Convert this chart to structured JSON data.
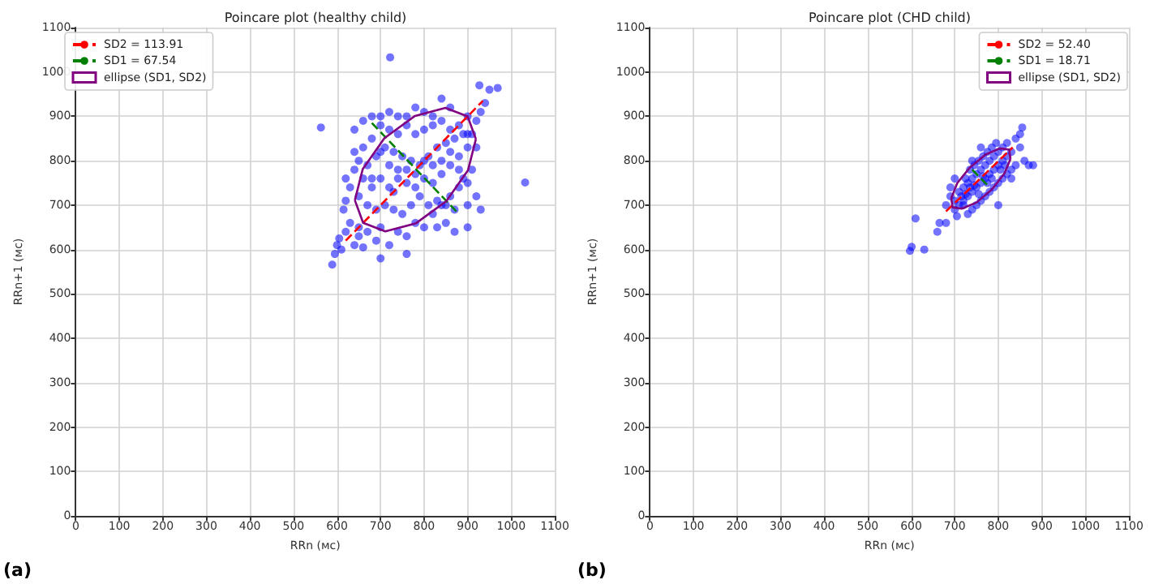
{
  "chart_data": [
    {
      "type": "scatter",
      "title": "Poincare plot (healthy child)",
      "xlabel": "RRn (мс)",
      "ylabel": "RRn+1 (мс)",
      "annotations": [
        "(a)"
      ],
      "xlim": [
        0,
        1100
      ],
      "ylim": [
        0,
        1100
      ],
      "xticks": [
        0,
        100,
        200,
        300,
        400,
        500,
        600,
        700,
        800,
        900,
        1000,
        1100
      ],
      "yticks": [
        0,
        100,
        200,
        300,
        400,
        500,
        600,
        700,
        800,
        900,
        1000,
        1100
      ],
      "grid": true,
      "legend": "top left",
      "series": [
        {
          "color": "#0000ff",
          "marker": "circle",
          "x": [
            722,
            563,
            1032,
            969,
            927,
            589,
            595,
            600,
            610,
            620,
            605,
            640,
            660,
            630,
            615,
            650,
            670,
            690,
            700,
            720,
            740,
            760,
            780,
            800,
            820,
            840,
            860,
            880,
            900,
            890,
            910,
            870,
            850,
            830,
            810,
            790,
            770,
            750,
            730,
            710,
            690,
            670,
            650,
            630,
            620,
            640,
            660,
            680,
            700,
            720,
            740,
            760,
            780,
            800,
            820,
            840,
            860,
            880,
            900,
            910,
            920,
            930,
            940,
            950,
            900,
            880,
            860,
            840,
            820,
            800,
            780,
            760,
            740,
            720,
            700,
            680,
            660,
            650,
            670,
            690,
            710,
            730,
            750,
            770,
            790,
            810,
            830,
            850,
            870,
            890,
            860,
            840,
            820,
            800,
            780,
            760,
            740,
            720,
            700,
            680,
            660,
            640,
            700,
            720,
            740,
            760,
            800,
            820,
            840,
            860,
            880,
            900,
            920,
            930,
            900,
            870,
            850,
            830,
            760,
            700,
            650,
            620,
            640,
            680,
            730,
            780,
            900,
            920
          ],
          "values": [
            1033,
            875,
            751,
            964,
            970,
            566,
            590,
            610,
            600,
            640,
            625,
            610,
            605,
            660,
            690,
            650,
            640,
            620,
            650,
            610,
            640,
            630,
            660,
            650,
            680,
            700,
            720,
            740,
            700,
            760,
            780,
            690,
            660,
            710,
            700,
            720,
            700,
            680,
            690,
            700,
            690,
            700,
            720,
            740,
            760,
            780,
            760,
            740,
            760,
            740,
            760,
            750,
            740,
            760,
            750,
            770,
            790,
            810,
            830,
            860,
            890,
            910,
            930,
            960,
            900,
            880,
            870,
            890,
            880,
            870,
            860,
            880,
            860,
            870,
            880,
            850,
            830,
            800,
            790,
            810,
            830,
            820,
            810,
            800,
            790,
            810,
            830,
            840,
            850,
            860,
            920,
            940,
            900,
            910,
            920,
            900,
            900,
            910,
            900,
            900,
            890,
            870,
            820,
            790,
            780,
            780,
            800,
            790,
            800,
            820,
            780,
            750,
            720,
            690,
            650,
            640,
            700,
            650,
            590,
            580,
            630,
            710,
            820,
            760,
            730,
            770,
            860,
            830
          ]
        },
        {
          "type": "line",
          "name": "SD2 = 113.91",
          "color": "#ff0000",
          "line_style": "dashed",
          "marker": "none",
          "x": [
            620,
            935
          ],
          "values": [
            620,
            935
          ]
        },
        {
          "type": "line",
          "name": "SD1 = 67.54",
          "color": "#008000",
          "line_style": "dashed",
          "marker": "none",
          "x": [
            680,
            875
          ],
          "values": [
            885,
            685
          ]
        },
        {
          "type": "line",
          "name": "ellipse (SD1, SD2)",
          "color": "#800080",
          "line_style": "solid",
          "marker": "none",
          "x": [
            641,
            659,
            709,
            779,
            849,
            900,
            919
          ],
          "values": [
            711,
            781,
            851,
            901,
            919,
            900,
            849
          ]
        },
        {
          "type": "line",
          "color": "#800080",
          "line_style": "solid",
          "marker": "none",
          "x": [
            641,
            660,
            711,
            781,
            851,
            901,
            919
          ],
          "values": [
            711,
            660,
            641,
            659,
            709,
            779,
            849
          ]
        }
      ]
    },
    {
      "type": "scatter",
      "title": "Poincare plot (CHD child)",
      "xlabel": "RRn (мс)",
      "ylabel": "RRn+1 (мс)",
      "annotations": [
        "(b)"
      ],
      "xlim": [
        0,
        1100
      ],
      "ylim": [
        0,
        1100
      ],
      "xticks": [
        0,
        100,
        200,
        300,
        400,
        500,
        600,
        700,
        800,
        900,
        1000,
        1100
      ],
      "yticks": [
        0,
        100,
        200,
        300,
        400,
        500,
        600,
        700,
        800,
        900,
        1000,
        1100
      ],
      "grid": true,
      "legend": "top right",
      "series": [
        {
          "color": "#0000ff",
          "marker": "circle",
          "x": [
            601,
            597,
            630,
            610,
            660,
            665,
            680,
            690,
            700,
            700,
            710,
            710,
            720,
            720,
            730,
            730,
            740,
            740,
            750,
            750,
            760,
            760,
            770,
            770,
            780,
            780,
            790,
            790,
            800,
            800,
            810,
            810,
            820,
            820,
            830,
            840,
            850,
            855,
            850,
            860,
            870,
            880,
            840,
            830,
            820,
            810,
            800,
            790,
            780,
            770,
            760,
            750,
            740,
            730,
            720,
            715,
            725,
            735,
            745,
            755,
            765,
            775,
            785,
            795,
            760,
            740,
            700,
            690,
            680,
            705,
            745,
            765,
            775,
            735,
            725,
            755,
            785,
            805,
            815,
            800,
            830
          ],
          "values": [
            606,
            597,
            600,
            670,
            640,
            660,
            700,
            720,
            690,
            710,
            700,
            730,
            710,
            740,
            720,
            750,
            730,
            760,
            740,
            770,
            750,
            780,
            760,
            790,
            770,
            800,
            780,
            810,
            790,
            820,
            800,
            830,
            810,
            840,
            820,
            850,
            860,
            875,
            830,
            800,
            790,
            790,
            790,
            780,
            770,
            760,
            750,
            740,
            730,
            720,
            710,
            700,
            690,
            680,
            700,
            720,
            760,
            780,
            790,
            800,
            810,
            820,
            830,
            840,
            830,
            800,
            760,
            740,
            660,
            675,
            745,
            765,
            750,
            740,
            725,
            725,
            760,
            780,
            790,
            700,
            760
          ]
        },
        {
          "type": "line",
          "name": "SD2 = 52.40",
          "color": "#ff0000",
          "line_style": "dashed",
          "marker": "none",
          "x": [
            680,
            833
          ],
          "values": [
            686,
            830
          ]
        },
        {
          "type": "line",
          "name": "SD1 = 18.71",
          "color": "#008000",
          "line_style": "dashed",
          "marker": "none",
          "x": [
            740,
            780
          ],
          "values": [
            780,
            740
          ]
        },
        {
          "type": "line",
          "name": "ellipse (SD1, SD2)",
          "color": "#800080",
          "line_style": "solid",
          "marker": "none",
          "x": [
            692,
            706,
            735,
            771,
            804,
            825,
            828
          ],
          "values": [
            716,
            750,
            785,
            814,
            828,
            825,
            804
          ]
        },
        {
          "type": "line",
          "color": "#800080",
          "line_style": "solid",
          "marker": "none",
          "x": [
            692,
            695,
            716,
            750,
            785,
            814,
            828
          ],
          "values": [
            716,
            695,
            692,
            706,
            735,
            771,
            804
          ]
        }
      ]
    }
  ]
}
